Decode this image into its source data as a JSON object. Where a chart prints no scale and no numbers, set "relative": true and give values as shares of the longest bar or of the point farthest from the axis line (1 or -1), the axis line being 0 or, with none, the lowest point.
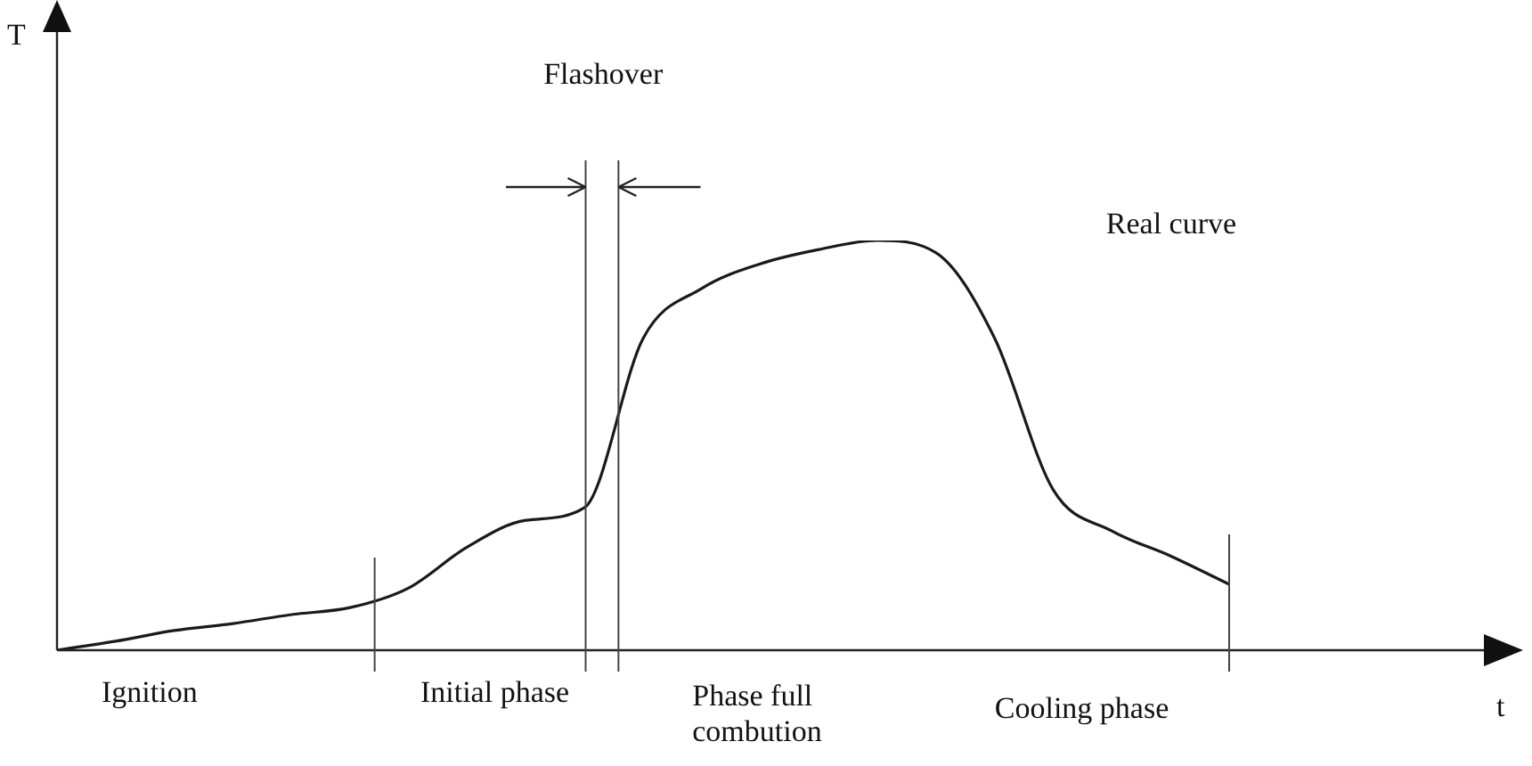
{
  "chart_data": {
    "type": "line",
    "relative": true,
    "categories": [
      null,
      null,
      null,
      null,
      null,
      null,
      null,
      null,
      null,
      null,
      null,
      null,
      null,
      null,
      null,
      null,
      null,
      null,
      null,
      null,
      null
    ],
    "series": [
      {
        "name": "Real curve",
        "color": "#1a1a1a",
        "values": [
          0,
          0.022,
          0.048,
          0.065,
          0.087,
          0.104,
          0.152,
          0.252,
          0.317,
          0.348,
          0.761,
          0.883,
          0.943,
          0.978,
          1,
          0.97,
          0.761,
          0.391,
          0.291,
          0.23,
          0.161
        ]
      }
    ],
    "annotations": [
      "Flashover",
      "Ignition",
      "Initial phase",
      "Phase full combution",
      "Cooling phase",
      "T",
      "t"
    ],
    "legend": false,
    "marker": "none",
    "line_style": "solid"
  }
}
